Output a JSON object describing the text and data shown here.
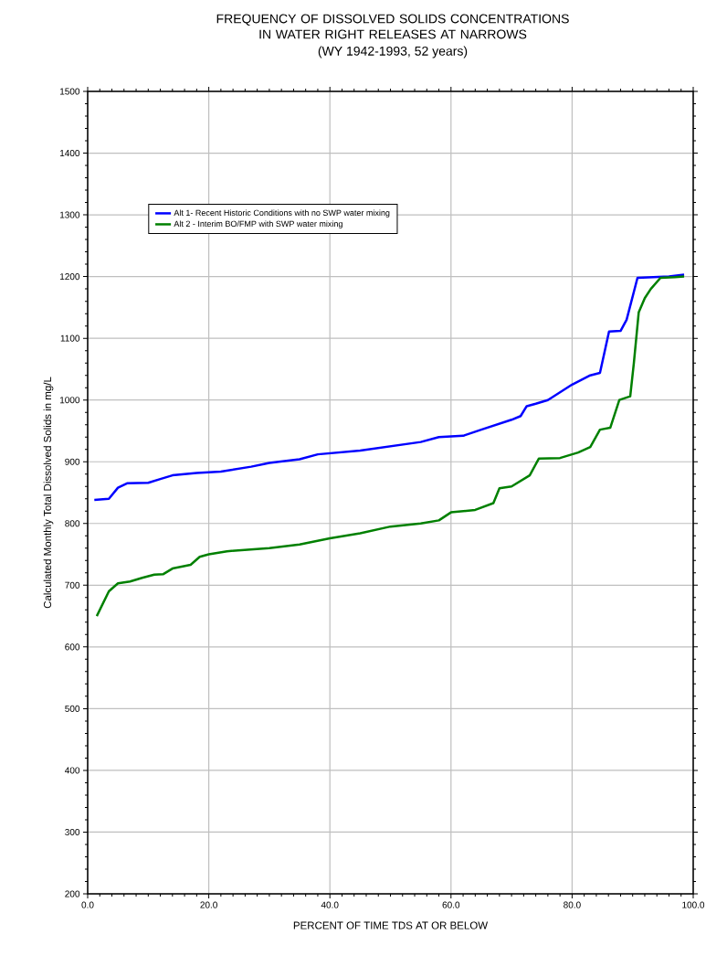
{
  "chart_data": {
    "type": "line",
    "title": "FREQUENCY OF DISSOLVED SOLIDS CONCENTRATIONS IN WATER RIGHT RELEASES AT NARROWS",
    "subtitle": "(WY 1942-1993, 52 years)",
    "xlabel": "PERCENT OF TIME TDS AT OR BELOW",
    "ylabel": "Calculated Monthly Total Dissolved Solids in mg/L",
    "xlim": [
      0,
      100
    ],
    "ylim": [
      200,
      1500
    ],
    "xticks": [
      {
        "value": 0,
        "label": "0.0"
      },
      {
        "value": 20,
        "label": "20.0"
      },
      {
        "value": 40,
        "label": "40.0"
      },
      {
        "value": 60,
        "label": "60.0"
      },
      {
        "value": 80,
        "label": "80.0"
      },
      {
        "value": 100,
        "label": "100.0"
      }
    ],
    "yticks": [
      200,
      300,
      400,
      500,
      600,
      700,
      800,
      900,
      1000,
      1100,
      1200,
      1300,
      1400,
      1500
    ],
    "grid": true,
    "legend": "top left",
    "marker": "none",
    "line_style": "solid",
    "series": [
      {
        "name": "Alt 1- Recent Historic Conditions with no SWP water mixing",
        "color": "#0000ff",
        "x": [
          1.1,
          3.5,
          5,
          6.5,
          10,
          12,
          14,
          18,
          22,
          27,
          30,
          35,
          38,
          45,
          50,
          55,
          58,
          62,
          65,
          70,
          71.5,
          72.5,
          74,
          76,
          80,
          83,
          84.6,
          86.1,
          88,
          89,
          90.8,
          96,
          98.5
        ],
        "values": [
          838,
          840,
          858,
          865,
          866,
          872,
          878,
          882,
          884,
          892,
          898,
          904,
          912,
          918,
          925,
          932,
          940,
          942,
          952,
          968,
          974,
          990,
          994,
          1000,
          1025,
          1040,
          1044,
          1111,
          1112,
          1130,
          1198,
          1200,
          1203
        ]
      },
      {
        "name": "Alt 2 - Interim BO/FMP with SWP water mixing",
        "color": "#008000",
        "x": [
          1.5,
          2.5,
          3.5,
          5,
          7,
          9,
          11,
          12.5,
          14,
          17,
          18.5,
          20,
          23,
          30,
          35,
          40,
          45,
          50,
          55,
          58,
          60,
          64,
          67,
          68,
          70,
          73,
          74.5,
          78,
          81,
          83,
          84.6,
          86.3,
          87.8,
          89.6,
          90.2,
          91,
          92,
          93,
          94.6,
          97,
          98.5
        ],
        "values": [
          650,
          670,
          690,
          703,
          706,
          712,
          717,
          718,
          727,
          733,
          746,
          750,
          755,
          760,
          766,
          776,
          784,
          795,
          800,
          805,
          818,
          822,
          833,
          857,
          860,
          878,
          905,
          906,
          915,
          924,
          952,
          955,
          1000,
          1006,
          1060,
          1142,
          1165,
          1180,
          1198,
          1199,
          1200
        ]
      }
    ]
  }
}
